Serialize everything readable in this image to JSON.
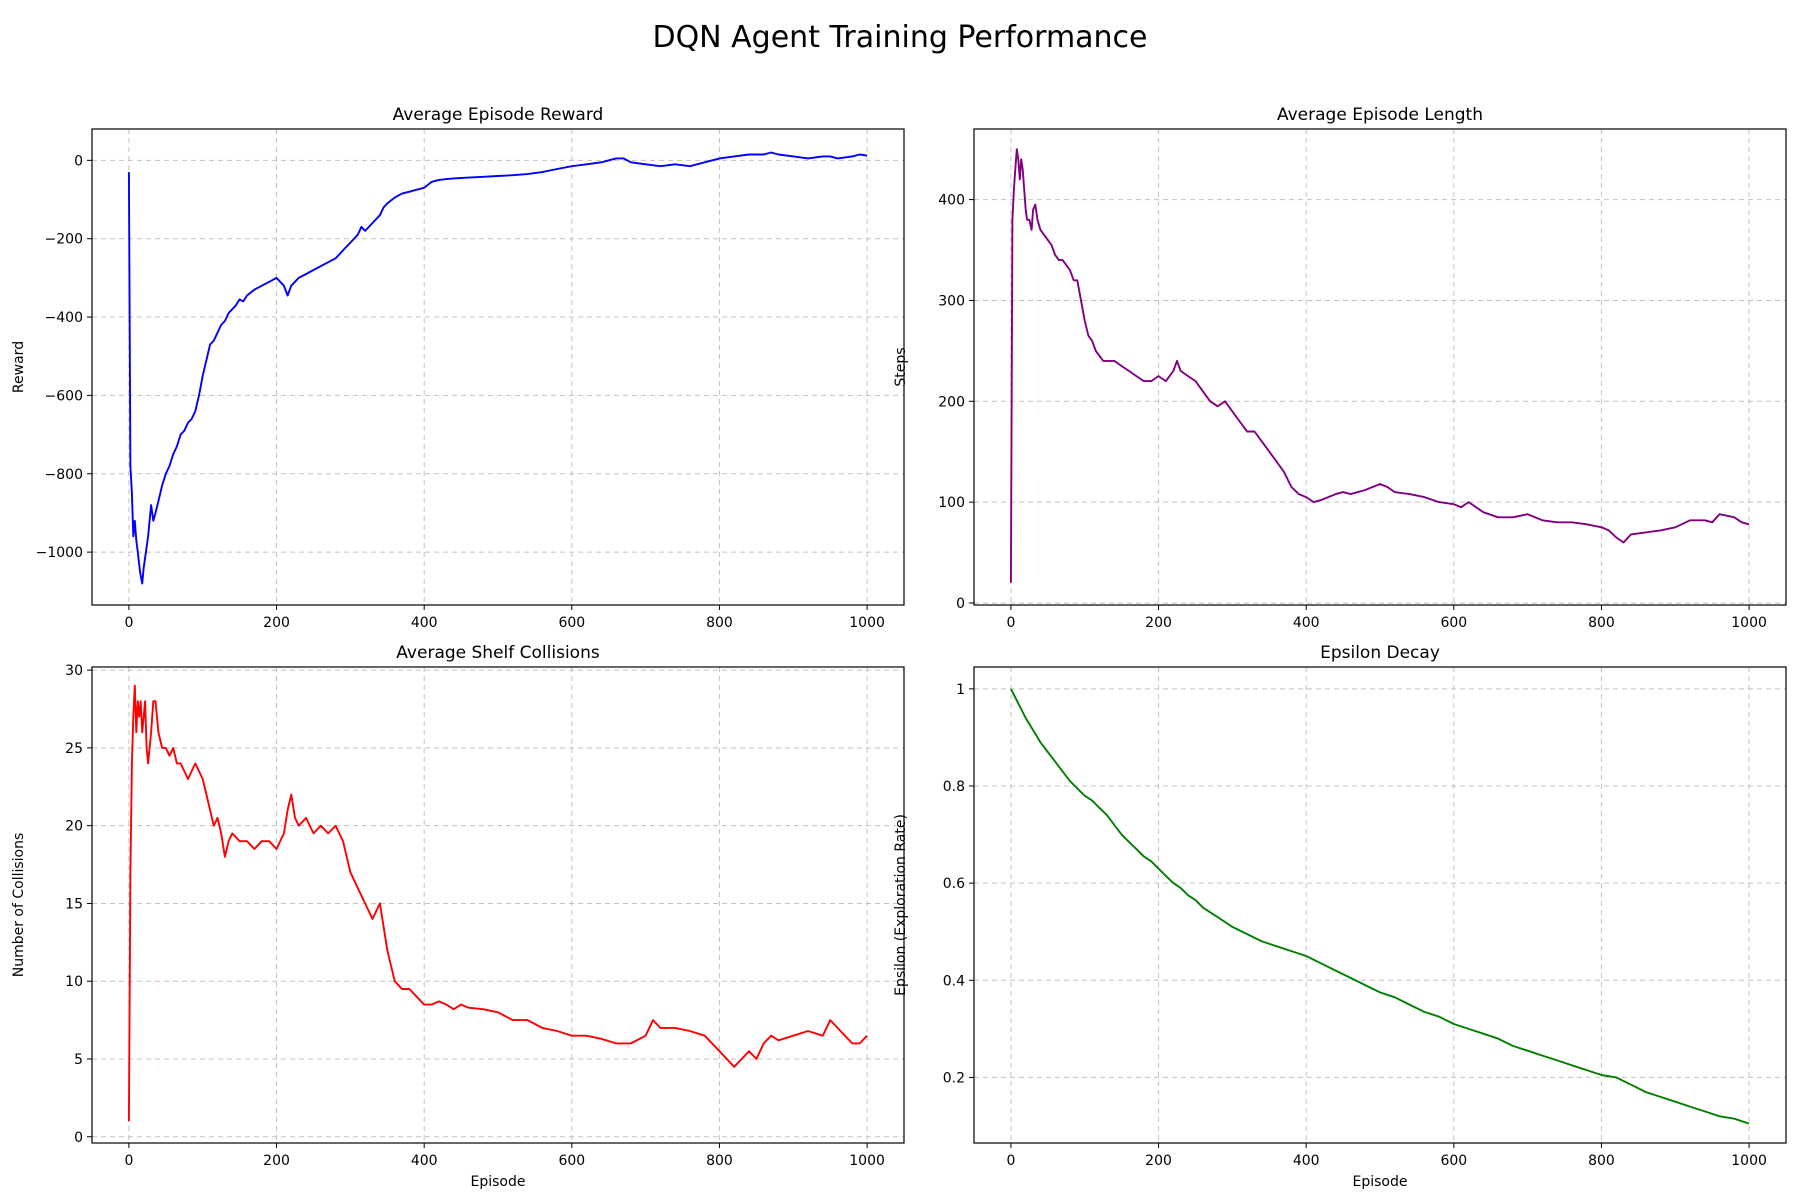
{
  "figure_title": "DQN Agent Training Performance",
  "chart_data": [
    {
      "type": "line",
      "title": "Average Episode Reward",
      "xlabel": "",
      "ylabel": "Reward",
      "xlim": [
        -50,
        1050
      ],
      "ylim": [
        -1135,
        80
      ],
      "xticks": [
        0,
        200,
        400,
        600,
        800,
        1000
      ],
      "yticks": [
        -1000,
        -800,
        -600,
        -400,
        -200,
        0
      ],
      "grid": true,
      "color": "#0000ff",
      "x": [
        0,
        2,
        4,
        6,
        8,
        10,
        12,
        15,
        18,
        20,
        23,
        26,
        30,
        33,
        36,
        40,
        45,
        50,
        55,
        60,
        65,
        70,
        75,
        80,
        85,
        90,
        95,
        100,
        105,
        110,
        115,
        120,
        125,
        130,
        135,
        140,
        145,
        150,
        155,
        160,
        170,
        180,
        190,
        200,
        210,
        215,
        220,
        225,
        230,
        240,
        250,
        260,
        270,
        280,
        290,
        300,
        310,
        315,
        320,
        330,
        340,
        345,
        350,
        360,
        370,
        380,
        390,
        400,
        410,
        420,
        430,
        440,
        450,
        460,
        480,
        500,
        520,
        540,
        560,
        580,
        600,
        620,
        640,
        660,
        670,
        680,
        700,
        720,
        740,
        760,
        780,
        800,
        820,
        840,
        860,
        870,
        880,
        900,
        920,
        940,
        950,
        960,
        980,
        990,
        1000
      ],
      "y": [
        -30,
        -780,
        -850,
        -960,
        -920,
        -970,
        -1000,
        -1050,
        -1080,
        -1040,
        -1000,
        -960,
        -880,
        -920,
        -900,
        -870,
        -830,
        -800,
        -780,
        -750,
        -730,
        -700,
        -690,
        -670,
        -660,
        -640,
        -600,
        -550,
        -510,
        -470,
        -460,
        -440,
        -420,
        -410,
        -390,
        -380,
        -370,
        -355,
        -360,
        -345,
        -330,
        -320,
        -310,
        -300,
        -320,
        -345,
        -320,
        -310,
        -300,
        -290,
        -280,
        -270,
        -260,
        -250,
        -230,
        -210,
        -190,
        -170,
        -180,
        -160,
        -140,
        -120,
        -110,
        -95,
        -85,
        -80,
        -75,
        -70,
        -55,
        -50,
        -48,
        -46,
        -45,
        -44,
        -42,
        -40,
        -38,
        -35,
        -30,
        -22,
        -15,
        -10,
        -5,
        5,
        5,
        -5,
        -10,
        -15,
        -10,
        -15,
        -5,
        5,
        10,
        15,
        15,
        20,
        15,
        10,
        5,
        10,
        10,
        5,
        10,
        15,
        12
      ]
    },
    {
      "type": "line",
      "title": "Average Episode Length",
      "xlabel": "",
      "ylabel": "Steps",
      "xlim": [
        -50,
        1050
      ],
      "ylim": [
        -2,
        470
      ],
      "xticks": [
        0,
        200,
        400,
        600,
        800,
        1000
      ],
      "yticks": [
        0,
        100,
        200,
        300,
        400
      ],
      "grid": true,
      "color": "#800080",
      "x": [
        0,
        2,
        4,
        6,
        8,
        10,
        12,
        14,
        16,
        18,
        20,
        22,
        25,
        28,
        30,
        33,
        36,
        40,
        45,
        50,
        55,
        60,
        65,
        70,
        75,
        80,
        85,
        90,
        95,
        100,
        105,
        110,
        115,
        120,
        125,
        130,
        140,
        150,
        160,
        170,
        180,
        190,
        200,
        210,
        220,
        225,
        230,
        240,
        250,
        260,
        270,
        280,
        290,
        300,
        310,
        320,
        330,
        340,
        350,
        360,
        370,
        380,
        390,
        400,
        410,
        420,
        430,
        440,
        450,
        460,
        470,
        480,
        490,
        500,
        510,
        520,
        540,
        560,
        580,
        600,
        610,
        620,
        630,
        640,
        660,
        680,
        700,
        720,
        740,
        760,
        780,
        800,
        810,
        820,
        830,
        840,
        860,
        880,
        900,
        920,
        940,
        950,
        960,
        980,
        990,
        1000
      ],
      "y": [
        20,
        380,
        410,
        430,
        450,
        440,
        420,
        440,
        430,
        410,
        390,
        380,
        380,
        370,
        390,
        395,
        380,
        370,
        365,
        360,
        355,
        345,
        340,
        340,
        335,
        330,
        320,
        320,
        300,
        280,
        265,
        260,
        250,
        245,
        240,
        240,
        240,
        235,
        230,
        225,
        220,
        220,
        225,
        220,
        230,
        240,
        230,
        225,
        220,
        210,
        200,
        195,
        200,
        190,
        180,
        170,
        170,
        160,
        150,
        140,
        130,
        115,
        108,
        105,
        100,
        102,
        105,
        108,
        110,
        108,
        110,
        112,
        115,
        118,
        115,
        110,
        108,
        105,
        100,
        98,
        95,
        100,
        95,
        90,
        85,
        85,
        88,
        82,
        80,
        80,
        78,
        75,
        72,
        65,
        60,
        68,
        70,
        72,
        75,
        82,
        82,
        80,
        88,
        85,
        80,
        78
      ]
    },
    {
      "type": "line",
      "title": "Average Shelf Collisions",
      "xlabel": "Episode",
      "ylabel": "Number of Collisions",
      "xlim": [
        -50,
        1050
      ],
      "ylim": [
        -0.4,
        30.2
      ],
      "xticks": [
        0,
        200,
        400,
        600,
        800,
        1000
      ],
      "yticks": [
        0,
        5,
        10,
        15,
        20,
        25,
        30
      ],
      "grid": true,
      "color": "#ff0000",
      "x": [
        0,
        2,
        4,
        6,
        8,
        10,
        12,
        14,
        16,
        18,
        20,
        22,
        24,
        26,
        28,
        30,
        33,
        36,
        40,
        45,
        50,
        55,
        60,
        65,
        70,
        80,
        90,
        100,
        110,
        115,
        120,
        125,
        130,
        135,
        140,
        150,
        160,
        170,
        180,
        190,
        200,
        210,
        215,
        220,
        225,
        230,
        240,
        250,
        260,
        270,
        280,
        290,
        300,
        310,
        320,
        330,
        340,
        345,
        350,
        355,
        360,
        370,
        380,
        390,
        400,
        410,
        420,
        430,
        440,
        450,
        460,
        480,
        500,
        520,
        540,
        560,
        580,
        600,
        620,
        640,
        660,
        680,
        700,
        710,
        720,
        740,
        760,
        780,
        800,
        810,
        820,
        830,
        840,
        850,
        860,
        870,
        880,
        900,
        920,
        940,
        950,
        960,
        970,
        980,
        990,
        1000
      ],
      "y": [
        1,
        17,
        24,
        27,
        29,
        26,
        28,
        27,
        28,
        26,
        27,
        28,
        25,
        24,
        25,
        26,
        28,
        28,
        26,
        25,
        25,
        24.5,
        25,
        24,
        24,
        23,
        24,
        23,
        21,
        20,
        20.5,
        19.5,
        18,
        19,
        19.5,
        19,
        19,
        18.5,
        19,
        19,
        18.5,
        19.5,
        21,
        22,
        20.5,
        20,
        20.5,
        19.5,
        20,
        19.5,
        20,
        19,
        17,
        16,
        15,
        14,
        15,
        13.5,
        12,
        11,
        10,
        9.5,
        9.5,
        9,
        8.5,
        8.5,
        8.7,
        8.5,
        8.2,
        8.5,
        8.3,
        8.2,
        8,
        7.5,
        7.5,
        7,
        6.8,
        6.5,
        6.5,
        6.3,
        6,
        6,
        6.5,
        7.5,
        7,
        7,
        6.8,
        6.5,
        5.5,
        5,
        4.5,
        5,
        5.5,
        5,
        6,
        6.5,
        6.2,
        6.5,
        6.8,
        6.5,
        7.5,
        7,
        6.5,
        6,
        6,
        6.5
      ]
    },
    {
      "type": "line",
      "title": "Epsilon Decay",
      "xlabel": "Episode",
      "ylabel": "Epsilon (Exploration Rate)",
      "xlim": [
        -50,
        1050
      ],
      "ylim": [
        0.065,
        1.045
      ],
      "xticks": [
        0,
        200,
        400,
        600,
        800,
        1000
      ],
      "yticks": [
        0.2,
        0.4,
        0.6,
        0.8,
        1.0
      ],
      "grid": true,
      "color": "#008000",
      "x": [
        0,
        10,
        20,
        30,
        40,
        50,
        60,
        70,
        80,
        90,
        100,
        110,
        120,
        130,
        140,
        150,
        160,
        170,
        180,
        190,
        200,
        210,
        220,
        230,
        240,
        250,
        260,
        270,
        280,
        290,
        300,
        320,
        340,
        360,
        380,
        400,
        420,
        440,
        460,
        480,
        500,
        520,
        540,
        560,
        580,
        600,
        620,
        640,
        660,
        680,
        700,
        720,
        740,
        760,
        780,
        800,
        820,
        840,
        860,
        880,
        900,
        920,
        940,
        960,
        980,
        1000
      ],
      "y": [
        1.0,
        0.97,
        0.94,
        0.915,
        0.89,
        0.87,
        0.85,
        0.83,
        0.81,
        0.795,
        0.78,
        0.77,
        0.755,
        0.74,
        0.72,
        0.7,
        0.685,
        0.67,
        0.655,
        0.645,
        0.63,
        0.615,
        0.6,
        0.59,
        0.575,
        0.565,
        0.55,
        0.54,
        0.53,
        0.52,
        0.51,
        0.495,
        0.48,
        0.47,
        0.46,
        0.45,
        0.435,
        0.42,
        0.405,
        0.39,
        0.375,
        0.365,
        0.35,
        0.335,
        0.325,
        0.31,
        0.3,
        0.29,
        0.28,
        0.265,
        0.255,
        0.245,
        0.235,
        0.225,
        0.215,
        0.205,
        0.2,
        0.185,
        0.17,
        0.16,
        0.15,
        0.14,
        0.13,
        0.12,
        0.115,
        0.105
      ]
    }
  ]
}
